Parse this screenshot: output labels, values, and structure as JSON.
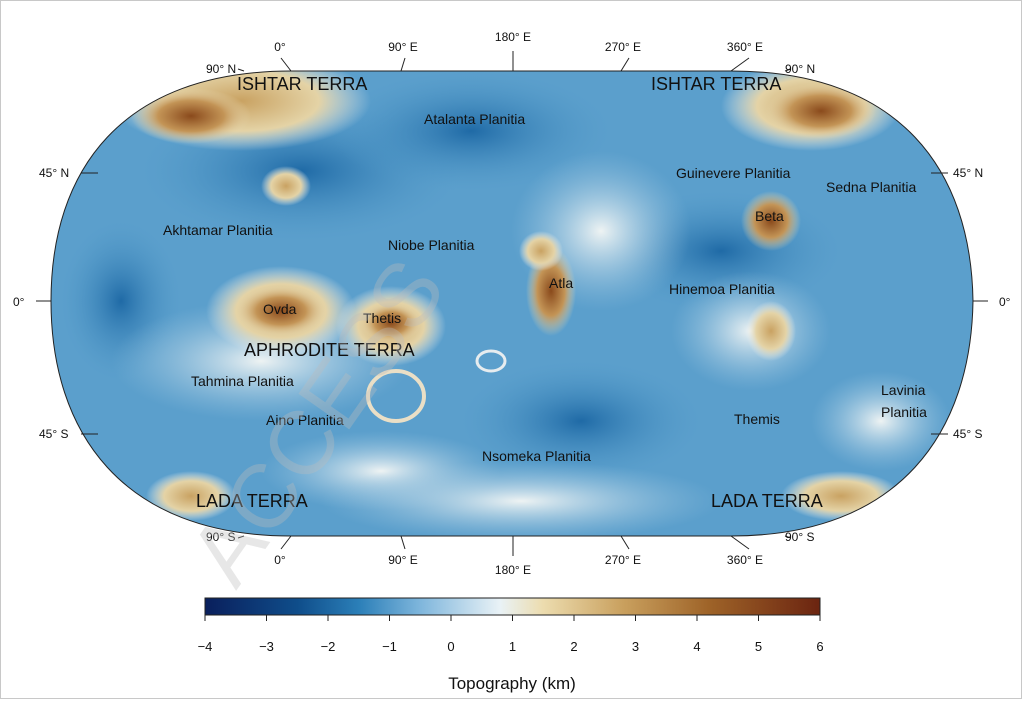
{
  "watermark": "ACCESS",
  "map": {
    "top_lon_labels": [
      "0°",
      "90° E",
      "180° E",
      "270° E",
      "360° E"
    ],
    "bottom_lon_labels": [
      "0°",
      "90° E",
      "180° E",
      "270° E",
      "360° E"
    ],
    "left_lat_labels": [
      "90° N",
      "45° N",
      "0°",
      "45° S",
      "90° S"
    ],
    "right_lat_labels": [
      "90° N",
      "45° N",
      "0°",
      "45° S",
      "90° S"
    ],
    "regions": [
      "ISHTAR TERRA",
      "ISHTAR TERRA",
      "APHRODITE TERRA",
      "LADA TERRA",
      "LADA TERRA"
    ],
    "features": [
      "Atalanta Planitia",
      "Guinevere Planitia",
      "Sedna Planitia",
      "Akhtamar Planitia",
      "Niobe Planitia",
      "Beta",
      "Atla",
      "Hinemoa Planitia",
      "Ovda",
      "Thetis",
      "Tahmina Planitia",
      "Aino Planitia",
      "Themis",
      "Lavinia",
      "Planitia",
      "Nsomeka Planitia"
    ]
  },
  "colorbar": {
    "title": "Topography (km)",
    "ticks": [
      "−4",
      "−3",
      "−2",
      "−1",
      "0",
      "1",
      "2",
      "3",
      "4",
      "5",
      "6"
    ],
    "min": -4,
    "max": 6,
    "colors": [
      "#0a1f5c",
      "#0f4d8a",
      "#2b7fb8",
      "#7fb6dc",
      "#e9f2f6",
      "#ecdcae",
      "#c9a05e",
      "#9e6328",
      "#6b2410"
    ]
  }
}
